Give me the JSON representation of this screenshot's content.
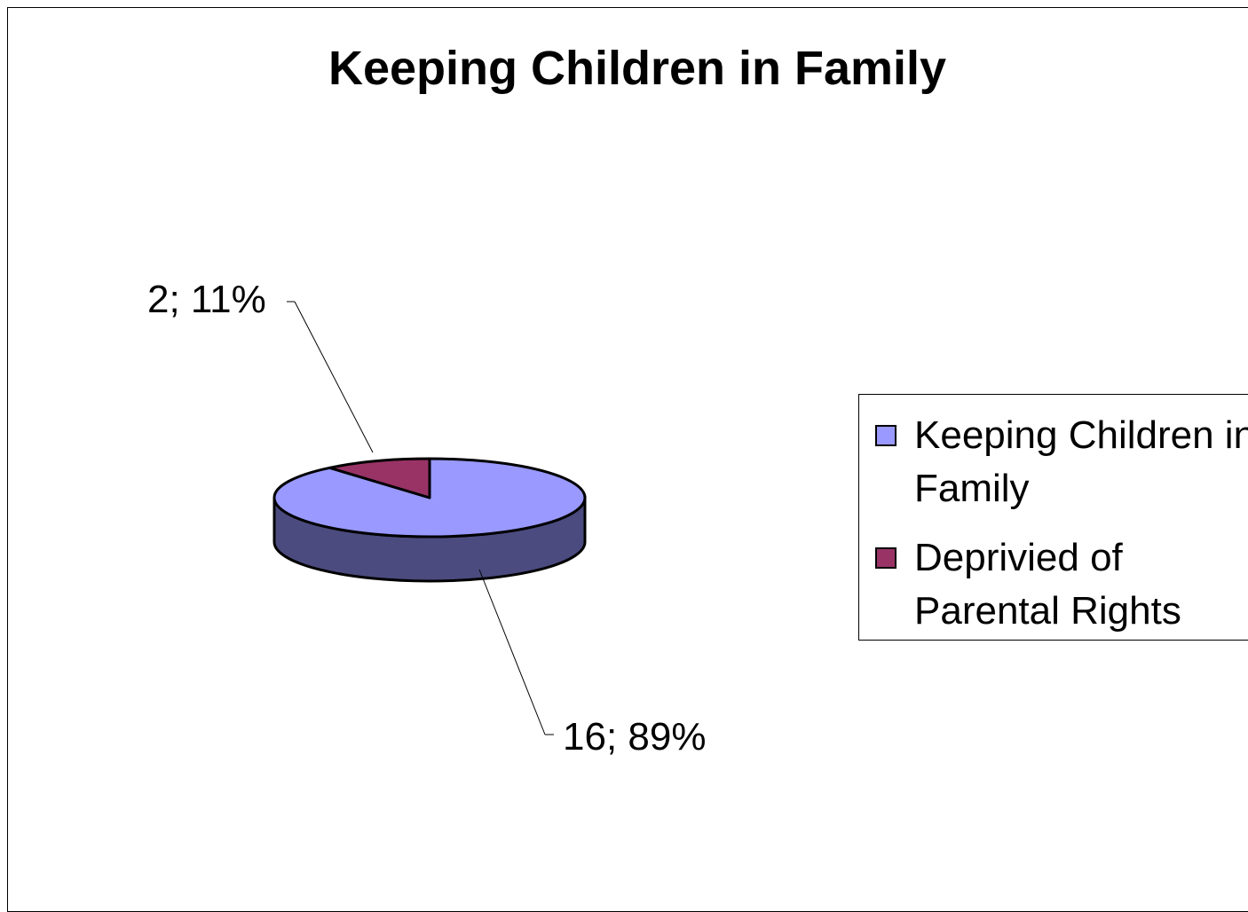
{
  "chart_data": {
    "type": "pie",
    "title": "Keeping Children in Family",
    "style": "3d",
    "legend_position": "right",
    "slices": [
      {
        "name": "Keeping Children in Family",
        "value": 16,
        "percent": 89,
        "label": "16; 89%",
        "color": "#9999ff",
        "side_color": "#4b4b7f"
      },
      {
        "name": "Deprivied of Parental Rights",
        "value": 2,
        "percent": 11,
        "label": "2; 11%",
        "color": "#993366",
        "side_color": "#4c1933"
      }
    ]
  }
}
